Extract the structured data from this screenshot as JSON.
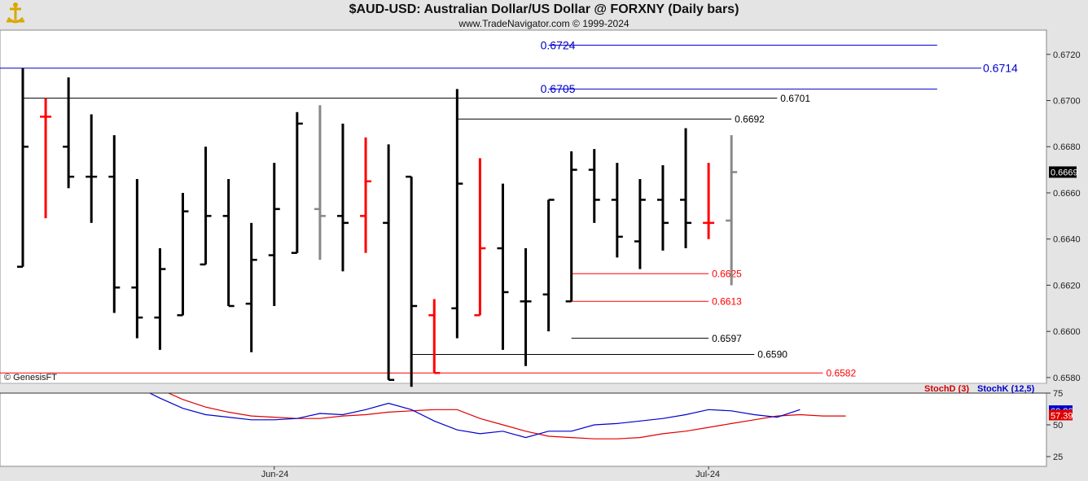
{
  "header": {
    "title": "$AUD-USD:  Australian Dollar/US Dollar @ FORXNY  (Daily bars)",
    "subtitle": "www.TradeNavigator.com © 1999-2024"
  },
  "copyright": "© GenesisFT",
  "colors": {
    "up_bar": "#000000",
    "down_bar": "#ff0000",
    "projected_bar": "#888888",
    "resistance": "#0000cc",
    "support": "#e00000",
    "stochD": "#e00000",
    "stochK": "#0000cc"
  },
  "chart_data": {
    "type": "ohlc",
    "price_axis": {
      "ticks": [
        "0.6720",
        "0.6700",
        "0.6680",
        "0.6660",
        "0.6640",
        "0.6620",
        "0.6600",
        "0.6580"
      ],
      "ylim": [
        0.65775,
        0.67305
      ],
      "last_price": "0.6669"
    },
    "x_labels": [
      {
        "label": "Jun-24",
        "bar": 11
      },
      {
        "label": "Jul-24",
        "bar": 30
      }
    ],
    "bars": [
      {
        "o": 0.6628,
        "h": 0.6714,
        "l": 0.6628,
        "c": 0.668,
        "color": "black"
      },
      {
        "o": 0.6693,
        "h": 0.6701,
        "l": 0.6649,
        "c": 0.6693,
        "color": "red"
      },
      {
        "o": 0.668,
        "h": 0.671,
        "l": 0.6662,
        "c": 0.6667,
        "color": "black"
      },
      {
        "o": 0.6667,
        "h": 0.6694,
        "l": 0.6647,
        "c": 0.6667,
        "color": "black"
      },
      {
        "o": 0.6667,
        "h": 0.6685,
        "l": 0.6608,
        "c": 0.6619,
        "color": "black"
      },
      {
        "o": 0.6619,
        "h": 0.6666,
        "l": 0.6597,
        "c": 0.6606,
        "color": "black"
      },
      {
        "o": 0.6606,
        "h": 0.6636,
        "l": 0.6592,
        "c": 0.6627,
        "color": "black"
      },
      {
        "o": 0.6607,
        "h": 0.666,
        "l": 0.6607,
        "c": 0.6652,
        "color": "black"
      },
      {
        "o": 0.6629,
        "h": 0.668,
        "l": 0.6629,
        "c": 0.665,
        "color": "black"
      },
      {
        "o": 0.665,
        "h": 0.6666,
        "l": 0.6611,
        "c": 0.6611,
        "color": "black"
      },
      {
        "o": 0.6612,
        "h": 0.6647,
        "l": 0.6591,
        "c": 0.6631,
        "color": "black"
      },
      {
        "o": 0.6633,
        "h": 0.6673,
        "l": 0.6611,
        "c": 0.6653,
        "color": "black"
      },
      {
        "o": 0.6634,
        "h": 0.6695,
        "l": 0.6634,
        "c": 0.669,
        "color": "black"
      },
      {
        "o": 0.6653,
        "h": 0.6698,
        "l": 0.6631,
        "c": 0.665,
        "color": "gray"
      },
      {
        "o": 0.665,
        "h": 0.669,
        "l": 0.6626,
        "c": 0.6647,
        "color": "black"
      },
      {
        "o": 0.665,
        "h": 0.6684,
        "l": 0.6634,
        "c": 0.6665,
        "color": "red"
      },
      {
        "o": 0.6647,
        "h": 0.6681,
        "l": 0.6579,
        "c": 0.6579,
        "color": "black"
      },
      {
        "o": 0.6667,
        "h": 0.6667,
        "l": 0.6576,
        "c": 0.6611,
        "color": "black"
      },
      {
        "o": 0.6607,
        "h": 0.6614,
        "l": 0.6582,
        "c": 0.6582,
        "color": "red"
      },
      {
        "o": 0.661,
        "h": 0.6705,
        "l": 0.6597,
        "c": 0.6664,
        "color": "black"
      },
      {
        "o": 0.6607,
        "h": 0.6675,
        "l": 0.6607,
        "c": 0.6636,
        "color": "red"
      },
      {
        "o": 0.6636,
        "h": 0.6664,
        "l": 0.6592,
        "c": 0.6617,
        "color": "black"
      },
      {
        "o": 0.6613,
        "h": 0.6636,
        "l": 0.6585,
        "c": 0.6613,
        "color": "black"
      },
      {
        "o": 0.6616,
        "h": 0.6657,
        "l": 0.66,
        "c": 0.6657,
        "color": "black"
      },
      {
        "o": 0.6613,
        "h": 0.6678,
        "l": 0.6613,
        "c": 0.667,
        "color": "black"
      },
      {
        "o": 0.667,
        "h": 0.6679,
        "l": 0.6647,
        "c": 0.6657,
        "color": "black"
      },
      {
        "o": 0.6657,
        "h": 0.6673,
        "l": 0.6632,
        "c": 0.6641,
        "color": "black"
      },
      {
        "o": 0.6639,
        "h": 0.6666,
        "l": 0.6627,
        "c": 0.6657,
        "color": "black"
      },
      {
        "o": 0.6657,
        "h": 0.6672,
        "l": 0.6635,
        "c": 0.6647,
        "color": "black"
      },
      {
        "o": 0.6657,
        "h": 0.6688,
        "l": 0.6636,
        "c": 0.6647,
        "color": "black"
      },
      {
        "o": 0.6647,
        "h": 0.6673,
        "l": 0.664,
        "c": 0.6647,
        "color": "red"
      },
      {
        "o": 0.6648,
        "h": 0.6685,
        "l": 0.662,
        "c": 0.6669,
        "color": "gray"
      }
    ],
    "levels": [
      {
        "label": "0.6724",
        "value": 0.6724,
        "color": "blue",
        "big": true,
        "from_bar": 23,
        "to_bar": 40
      },
      {
        "label": "0.6714",
        "value": 0.6714,
        "color": "blue",
        "big": true,
        "from_bar": -1,
        "to_bar": 40,
        "label_right": true
      },
      {
        "label": "0.6705",
        "value": 0.6705,
        "color": "blue",
        "big": true,
        "from_bar": 23,
        "to_bar": 40
      },
      {
        "label": "0.6701",
        "value": 0.6701,
        "color": "black",
        "from_bar": 0,
        "to_bar": 33
      },
      {
        "label": "0.6692",
        "value": 0.6692,
        "color": "black",
        "from_bar": 19,
        "to_bar": 31
      },
      {
        "label": "0.6625",
        "value": 0.6625,
        "color": "red",
        "from_bar": 24,
        "to_bar": 30
      },
      {
        "label": "0.6613",
        "value": 0.6613,
        "color": "red",
        "from_bar": 24,
        "to_bar": 30
      },
      {
        "label": "0.6597",
        "value": 0.6597,
        "color": "black",
        "from_bar": 24,
        "to_bar": 30
      },
      {
        "label": "0.6590",
        "value": 0.659,
        "color": "black",
        "from_bar": 17,
        "to_bar": 32
      },
      {
        "label": "0.6582",
        "value": 0.6582,
        "color": "red",
        "from_bar": -1,
        "to_bar": 35
      }
    ],
    "stochastic": {
      "legend_d": "StochD (3)",
      "legend_k": "StochK (12,5)",
      "ticks": [
        "75",
        "50",
        "25"
      ],
      "value_k": "60.86",
      "value_d": "57.39",
      "stochD": [
        null,
        null,
        null,
        null,
        95,
        86,
        78,
        70,
        64,
        60,
        57,
        56,
        55,
        55,
        57,
        58,
        60,
        61,
        62,
        62,
        55,
        50,
        45,
        41,
        40,
        39,
        39,
        40,
        43,
        45,
        48,
        51,
        54,
        57,
        58,
        57,
        57
      ],
      "stochK": [
        null,
        null,
        null,
        null,
        88,
        80,
        71,
        63,
        58,
        56,
        54,
        54,
        55,
        59,
        58,
        62,
        67,
        62,
        53,
        46,
        43,
        45,
        40,
        45,
        45,
        50,
        51,
        53,
        55,
        58,
        62,
        61,
        58,
        56,
        62,
        null,
        null
      ]
    }
  }
}
